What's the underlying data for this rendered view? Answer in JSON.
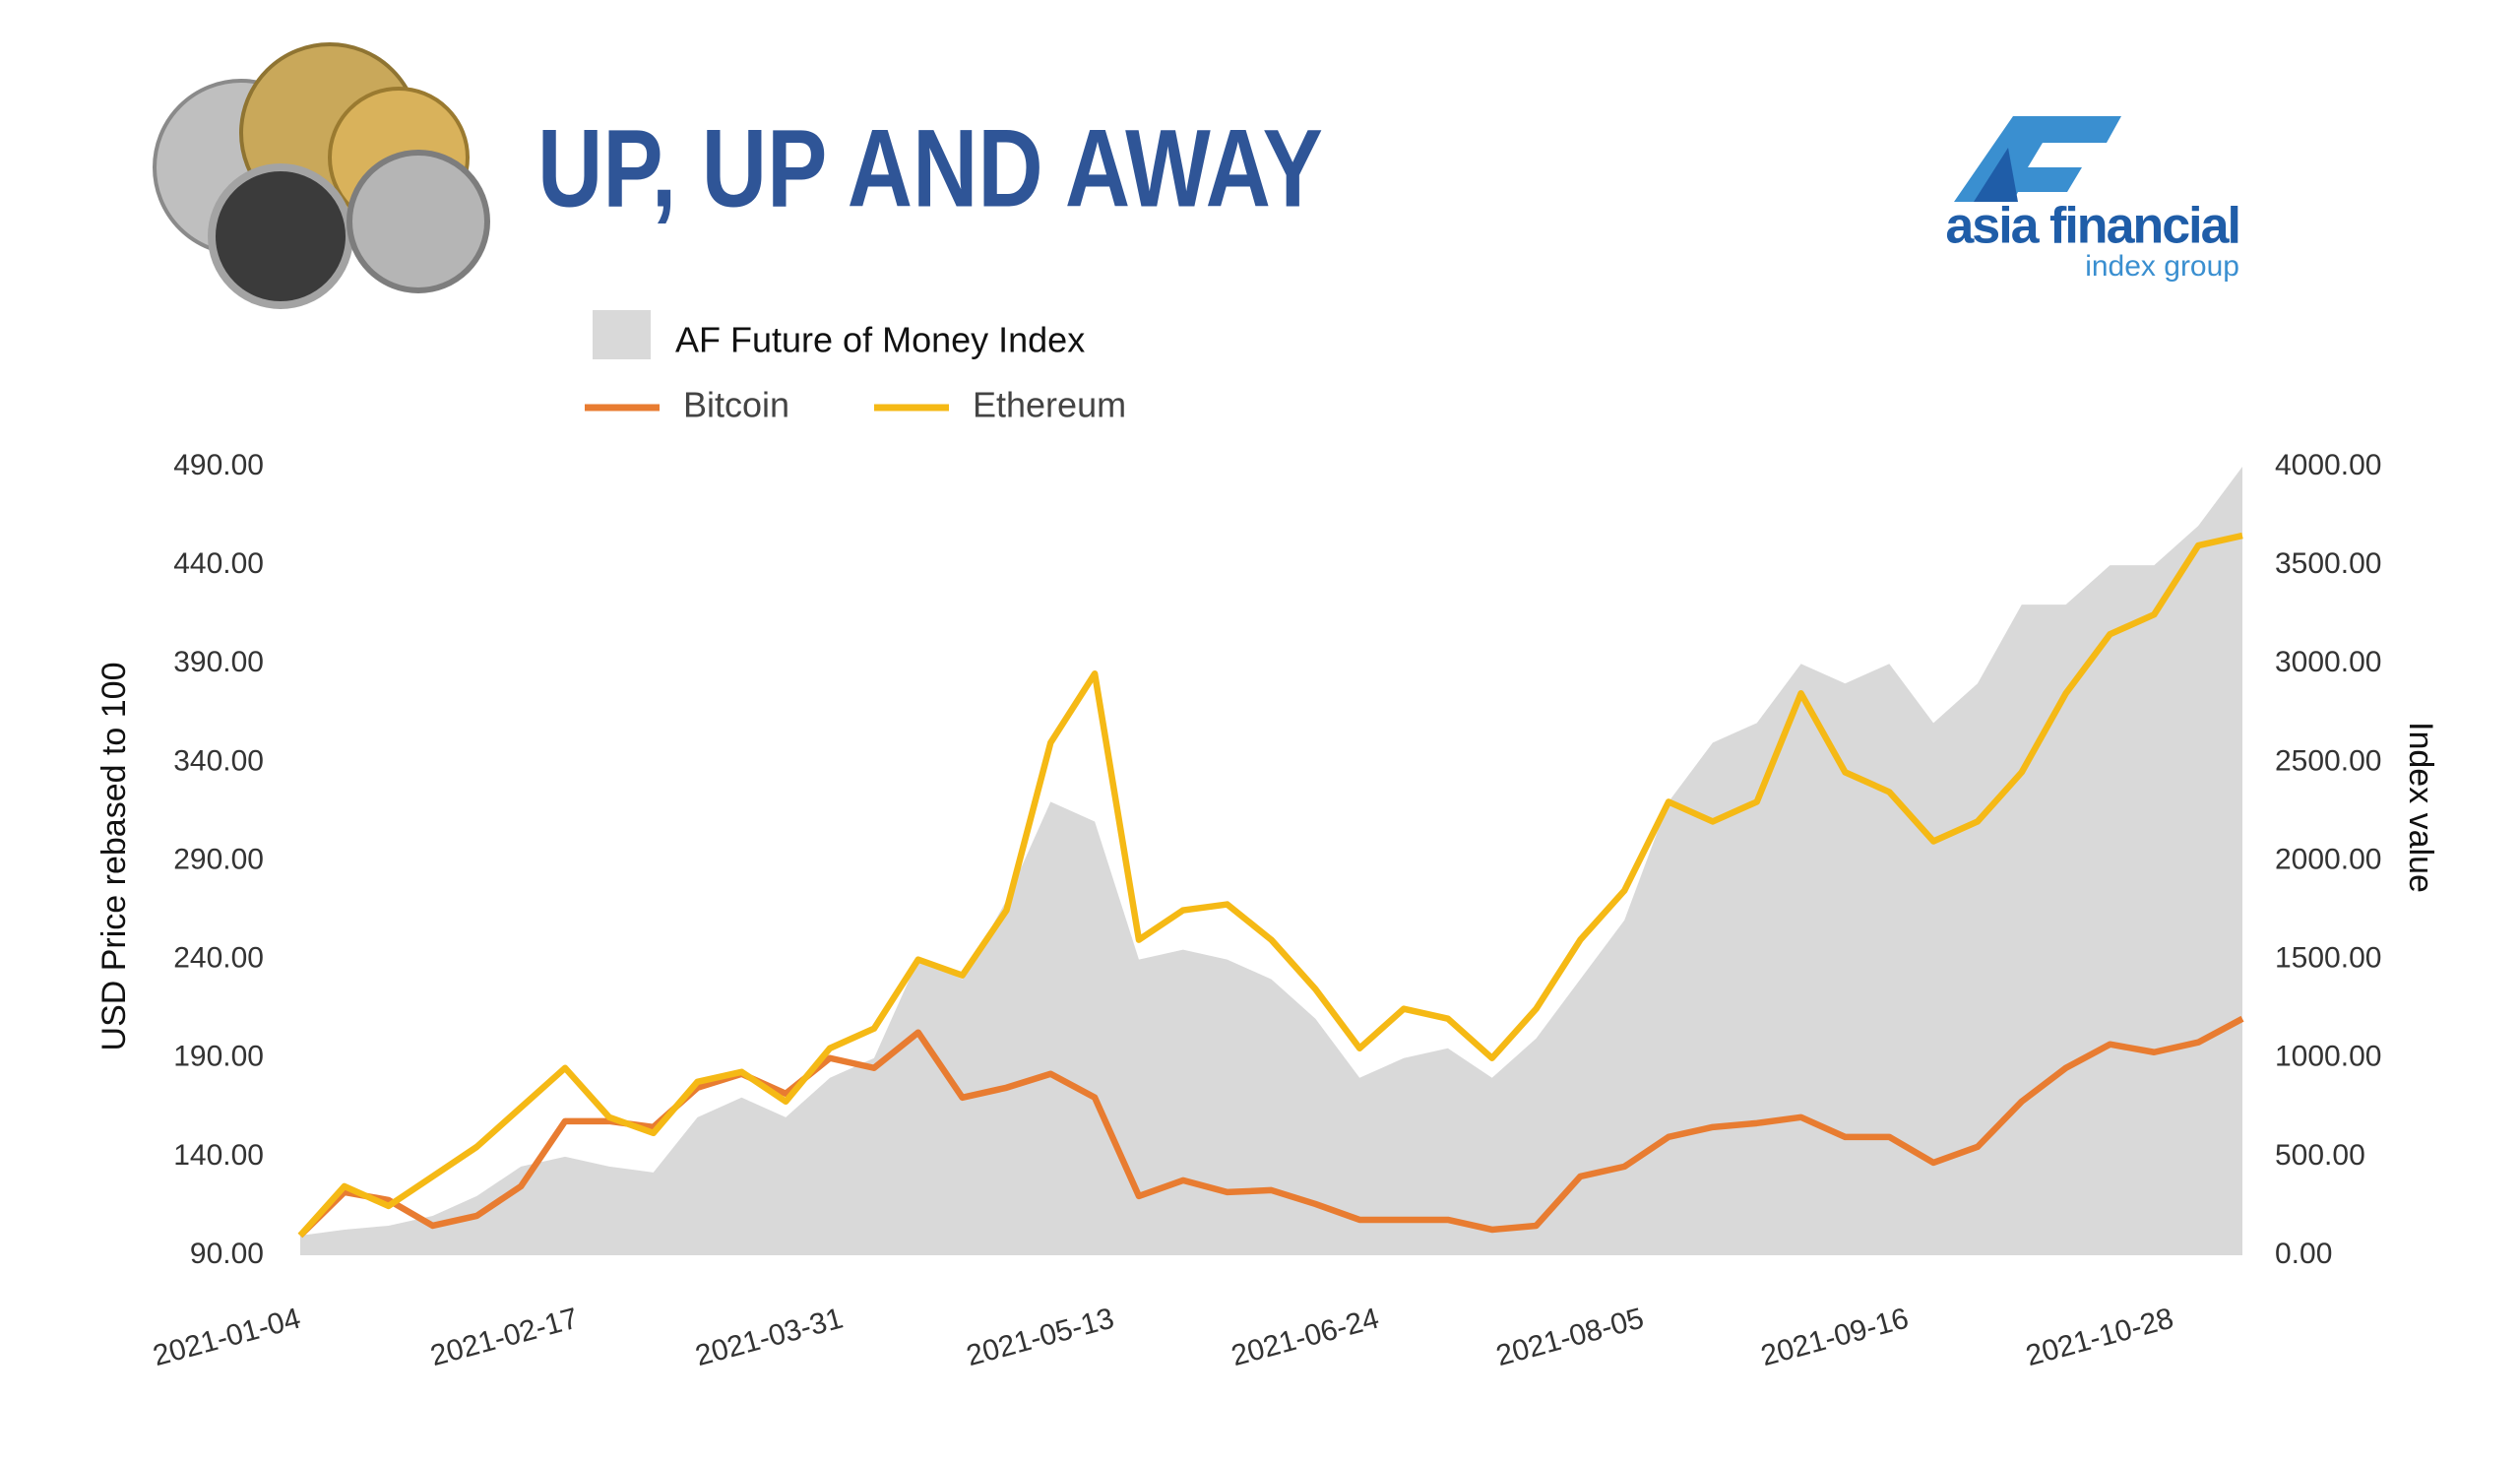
{
  "logo": {
    "name": "asia financial",
    "tagline": "index group"
  },
  "chart_data": {
    "type": "combo",
    "title": "UP, UP AND AWAY",
    "x": [
      "2021-01-04",
      "2021-01-11",
      "2021-01-18",
      "2021-01-25",
      "2021-02-01",
      "2021-02-08",
      "2021-02-15",
      "2021-02-22",
      "2021-03-01",
      "2021-03-08",
      "2021-03-15",
      "2021-03-22",
      "2021-03-29",
      "2021-04-05",
      "2021-04-12",
      "2021-04-19",
      "2021-04-26",
      "2021-05-03",
      "2021-05-10",
      "2021-05-17",
      "2021-05-24",
      "2021-05-31",
      "2021-06-07",
      "2021-06-14",
      "2021-06-21",
      "2021-06-28",
      "2021-07-05",
      "2021-07-12",
      "2021-07-19",
      "2021-07-26",
      "2021-08-02",
      "2021-08-09",
      "2021-08-16",
      "2021-08-23",
      "2021-08-30",
      "2021-09-06",
      "2021-09-13",
      "2021-09-20",
      "2021-09-27",
      "2021-10-04",
      "2021-10-11",
      "2021-10-18",
      "2021-10-25",
      "2021-11-01",
      "2021-11-08"
    ],
    "series": [
      {
        "name": "AF Future of Money Index",
        "type": "area",
        "axis": "y2",
        "color": "#d9d9d9",
        "values": [
          100,
          130,
          150,
          200,
          300,
          450,
          500,
          450,
          420,
          700,
          800,
          700,
          900,
          1000,
          1500,
          1400,
          1800,
          2300,
          2200,
          1500,
          1550,
          1500,
          1400,
          1200,
          900,
          1000,
          1050,
          900,
          1100,
          1400,
          1700,
          2300,
          2600,
          2700,
          3000,
          2900,
          3000,
          2700,
          2900,
          3300,
          3300,
          3500,
          3500,
          3700,
          4000
        ]
      },
      {
        "name": "Bitcoin",
        "type": "line",
        "color": "#e87c31",
        "values": [
          100,
          122,
          118,
          105,
          110,
          125,
          158,
          158,
          155,
          175,
          182,
          172,
          190,
          185,
          203,
          170,
          175,
          182,
          170,
          120,
          128,
          122,
          123,
          116,
          108,
          108,
          108,
          103,
          105,
          130,
          135,
          150,
          155,
          157,
          160,
          150,
          150,
          137,
          145,
          168,
          185,
          197,
          193,
          198,
          210
        ]
      },
      {
        "name": "Ethereum",
        "type": "line",
        "color": "#f5b915",
        "values": [
          100,
          125,
          115,
          130,
          145,
          165,
          185,
          160,
          152,
          178,
          183,
          168,
          195,
          205,
          240,
          232,
          265,
          350,
          385,
          250,
          265,
          268,
          250,
          225,
          195,
          215,
          210,
          190,
          215,
          250,
          275,
          320,
          310,
          320,
          375,
          335,
          325,
          300,
          310,
          335,
          375,
          405,
          415,
          450,
          455
        ]
      }
    ],
    "xlim": [
      "2021-01-04",
      "2021-11-08"
    ],
    "xticks": [
      "2021-01-04",
      "2021-02-17",
      "2021-03-31",
      "2021-05-13",
      "2021-06-24",
      "2021-08-05",
      "2021-09-16",
      "2021-10-28"
    ],
    "ylim": [
      90,
      490
    ],
    "yticks": [
      {
        "value": 90,
        "label": "90.00"
      },
      {
        "value": 140,
        "label": "140.00"
      },
      {
        "value": 190,
        "label": "190.00"
      },
      {
        "value": 240,
        "label": "240.00"
      },
      {
        "value": 290,
        "label": "290.00"
      },
      {
        "value": 340,
        "label": "340.00"
      },
      {
        "value": 390,
        "label": "390.00"
      },
      {
        "value": 440,
        "label": "440.00"
      },
      {
        "value": 490,
        "label": "490.00"
      }
    ],
    "y2lim": [
      0,
      4000
    ],
    "y2ticks": [
      {
        "value": 0,
        "label": "0.00"
      },
      {
        "value": 500,
        "label": "500.00"
      },
      {
        "value": 1000,
        "label": "1000.00"
      },
      {
        "value": 1500,
        "label": "1500.00"
      },
      {
        "value": 2000,
        "label": "2000.00"
      },
      {
        "value": 2500,
        "label": "2500.00"
      },
      {
        "value": 3000,
        "label": "3000.00"
      },
      {
        "value": 3500,
        "label": "3500.00"
      },
      {
        "value": 4000,
        "label": "4000.00"
      }
    ],
    "ylabel": "USD Price rebased to 100",
    "y2label": "Index value",
    "grid": false
  }
}
